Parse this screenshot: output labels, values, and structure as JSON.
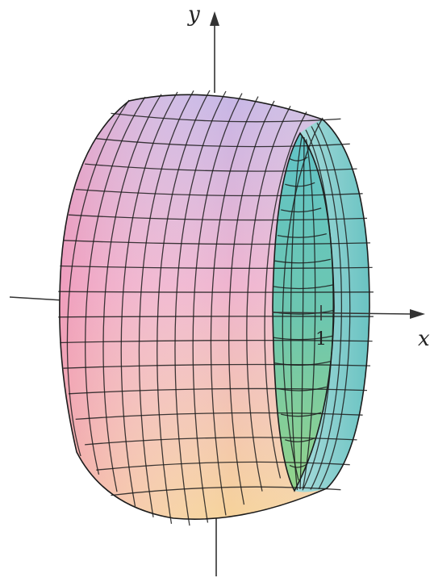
{
  "figure": {
    "x_axis_label": "x",
    "y_axis_label": "y",
    "tick_label": "1",
    "colors": {
      "top": "#c8b8e6",
      "left": "#f0a2bc",
      "bottom": "#f6d49a",
      "inner_top": "#5fc2c4",
      "inner_bottom": "#8bd08e",
      "mesh": "#1c1c1c",
      "axis": "#333333"
    }
  }
}
